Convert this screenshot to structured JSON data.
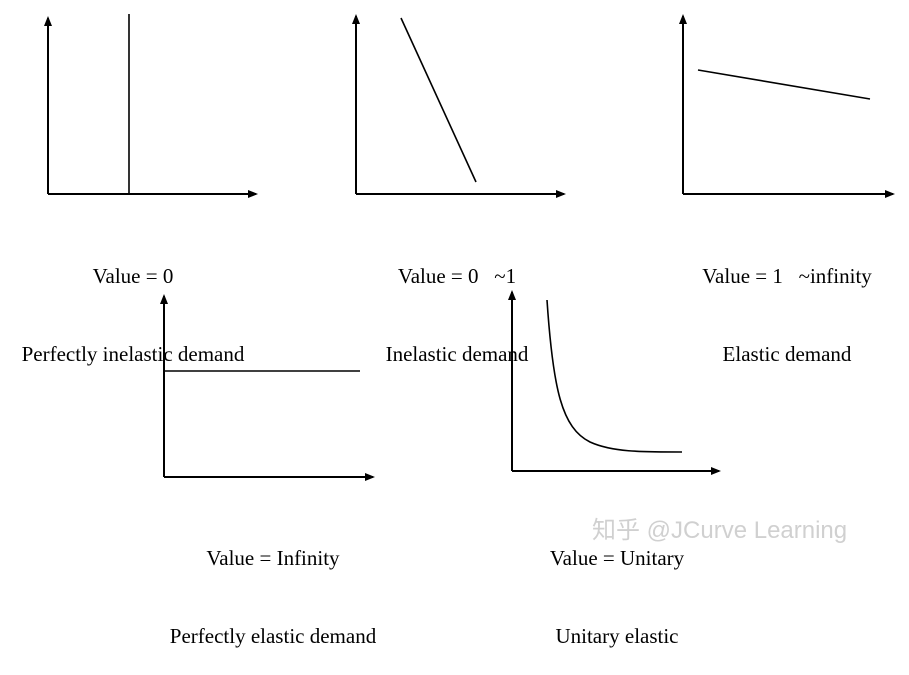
{
  "panels": [
    {
      "value_label": "Value = 0",
      "type_label": "Perfectly inelastic demand"
    },
    {
      "value_label": "Value = 0   ~1",
      "type_label": "Inelastic demand"
    },
    {
      "value_label": "Value = 1   ~infinity",
      "type_label": "Elastic demand"
    },
    {
      "value_label": "Value = Infinity",
      "type_label": "Perfectly elastic demand"
    },
    {
      "value_label": "Value = Unitary",
      "type_label": "Unitary elastic"
    }
  ],
  "watermark": "知乎 @JCurve Learning",
  "colors": {
    "line": "#000000",
    "watermark": "#aaaaaa"
  }
}
